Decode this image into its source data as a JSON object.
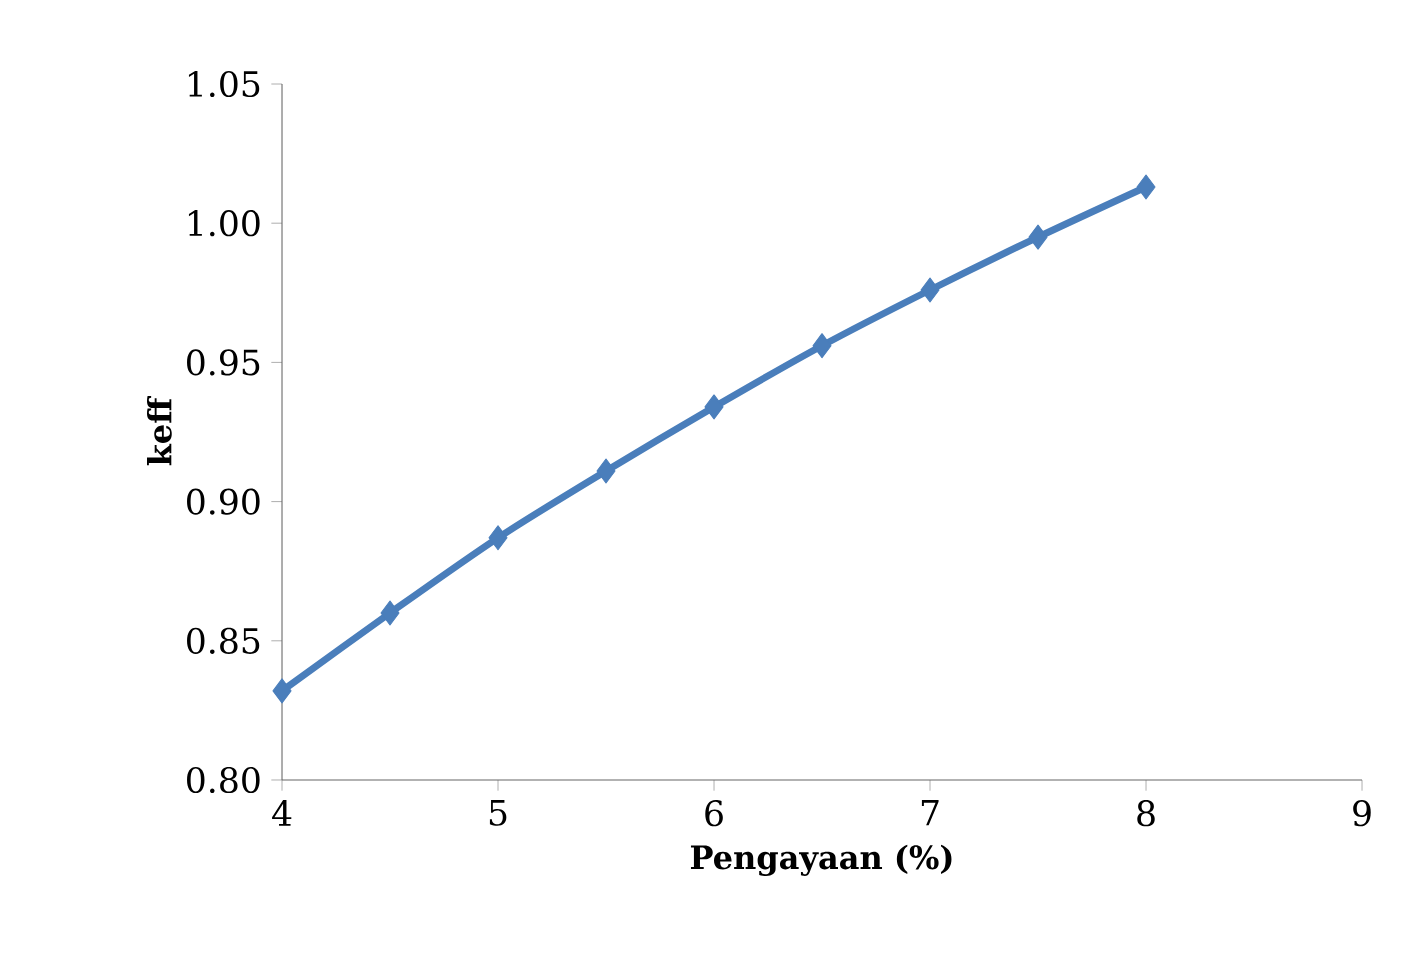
{
  "chart_data": {
    "type": "line",
    "xlabel": "Pengayaan  (%)",
    "ylabel": "keff",
    "x": [
      4,
      4.5,
      5,
      5.5,
      6,
      6.5,
      7,
      7.5,
      8
    ],
    "series": [
      {
        "color": "#4a7ebb",
        "values": [
          0.832,
          0.86,
          0.887,
          0.911,
          0.934,
          0.956,
          0.976,
          0.995,
          1.013
        ]
      }
    ],
    "xlim": [
      4,
      9
    ],
    "xticks": [
      4,
      5,
      6,
      7,
      8,
      9
    ],
    "ylim": [
      0.8,
      1.05
    ],
    "yticks": [
      {
        "value": 0.8,
        "label": "0.80"
      },
      {
        "value": 0.85,
        "label": "0.85"
      },
      {
        "value": 0.9,
        "label": "0.90"
      },
      {
        "value": 0.95,
        "label": "0.95"
      },
      {
        "value": 1.0,
        "label": "1.00"
      },
      {
        "value": 1.05,
        "label": "1.05"
      }
    ],
    "grid": false,
    "legend": false,
    "marker": "diamond",
    "line_style": "solid"
  }
}
